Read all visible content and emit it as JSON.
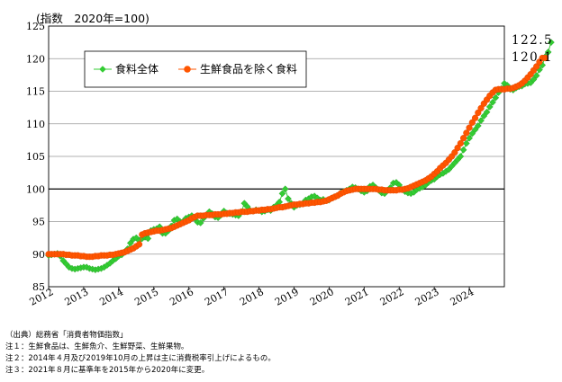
{
  "colors": {
    "food_all": "#33cc33",
    "fresh_excl": "#ff5500",
    "gridline": "#999999",
    "reference": "#000000"
  },
  "chart_data": {
    "type": "line",
    "unit_label": "(指数　2020年=100)",
    "ylim": [
      85,
      125
    ],
    "yticks": [
      85,
      90,
      95,
      100,
      105,
      110,
      115,
      120,
      125
    ],
    "xlim": [
      2012,
      2025
    ],
    "xticks": [
      "2012",
      "2013",
      "2014",
      "2015",
      "2016",
      "2017",
      "2018",
      "2019",
      "2020",
      "2021",
      "2022",
      "2023",
      "2024"
    ],
    "reference_line": 100,
    "legend_position": "top-left",
    "end_labels": [
      "122.5",
      "120.1"
    ],
    "series": [
      {
        "name": "食料全体",
        "marker": "diamond",
        "values": [
          89.8,
          89.9,
          90.0,
          90.1,
          89.7,
          89.0,
          88.5,
          88.0,
          87.8,
          87.7,
          87.8,
          87.9,
          88.0,
          88.0,
          87.8,
          87.7,
          87.6,
          87.7,
          87.8,
          88.0,
          88.3,
          88.6,
          89.0,
          89.3,
          89.7,
          89.9,
          90.3,
          90.8,
          91.7,
          92.3,
          92.5,
          92.1,
          92.4,
          92.6,
          92.4,
          93.6,
          93.8,
          93.9,
          94.2,
          93.2,
          93.2,
          93.6,
          94.3,
          95.2,
          95.4,
          95.0,
          95.0,
          95.5,
          95.7,
          95.9,
          95.5,
          94.9,
          94.8,
          95.5,
          96.0,
          96.5,
          96.2,
          95.7,
          95.6,
          96.0,
          96.6,
          96.3,
          96.2,
          96.1,
          96.0,
          95.9,
          96.5,
          97.8,
          97.3,
          96.7,
          96.6,
          96.8,
          96.7,
          96.5,
          96.6,
          96.8,
          96.7,
          97.2,
          97.5,
          98.0,
          99.3,
          100.0,
          98.5,
          97.8,
          97.2,
          97.5,
          97.6,
          97.8,
          98.3,
          98.5,
          98.8,
          98.9,
          98.6,
          98.3,
          98.4,
          98.2,
          98.3,
          98.6,
          98.8,
          99.0,
          99.4,
          99.6,
          99.8,
          100.0,
          100.3,
          100.2,
          100.0,
          99.7,
          99.5,
          99.7,
          100.4,
          100.6,
          100.2,
          99.8,
          99.4,
          99.3,
          99.8,
          100.2,
          100.9,
          101.0,
          100.6,
          99.9,
          99.6,
          99.4,
          99.3,
          99.5,
          99.9,
          100.1,
          100.3,
          100.6,
          101.0,
          101.3,
          101.5,
          101.9,
          102.2,
          102.4,
          102.7,
          103.0,
          103.5,
          104.0,
          104.5,
          105.0,
          106.0,
          107.0,
          107.8,
          108.5,
          109.1,
          109.7,
          110.5,
          111.2,
          111.8,
          112.6,
          113.3,
          114.0,
          114.8,
          115.4,
          116.2,
          115.9,
          115.3,
          115.2,
          115.5,
          115.7,
          115.8,
          116.1,
          116.2,
          116.3,
          116.8,
          117.4,
          118.3,
          119.0,
          120.3,
          121.0,
          122.5
        ]
      },
      {
        "name": "生鮮食品を除く食料",
        "marker": "circle",
        "values": [
          90.0,
          90.0,
          90.0,
          90.0,
          90.0,
          90.0,
          89.9,
          89.9,
          89.8,
          89.8,
          89.8,
          89.7,
          89.7,
          89.6,
          89.6,
          89.6,
          89.7,
          89.7,
          89.8,
          89.8,
          89.8,
          89.9,
          89.9,
          90.0,
          90.1,
          90.2,
          90.3,
          90.5,
          90.7,
          90.9,
          91.2,
          91.5,
          93.0,
          93.2,
          93.3,
          93.4,
          93.5,
          93.6,
          93.6,
          93.7,
          93.8,
          93.9,
          94.0,
          94.2,
          94.4,
          94.6,
          94.8,
          95.0,
          95.2,
          95.5,
          95.7,
          95.9,
          95.9,
          95.9,
          96.0,
          96.0,
          96.0,
          96.1,
          96.1,
          96.1,
          96.2,
          96.2,
          96.3,
          96.3,
          96.4,
          96.4,
          96.5,
          96.5,
          96.5,
          96.6,
          96.6,
          96.7,
          96.7,
          96.8,
          96.8,
          96.9,
          96.9,
          97.0,
          97.1,
          97.2,
          97.2,
          97.3,
          97.4,
          97.5,
          97.6,
          97.6,
          97.7,
          97.7,
          97.8,
          97.8,
          97.9,
          97.9,
          98.0,
          98.0,
          98.1,
          98.2,
          98.4,
          98.6,
          98.8,
          99.0,
          99.3,
          99.5,
          99.7,
          99.8,
          99.9,
          100.0,
          100.0,
          100.0,
          100.0,
          100.0,
          100.0,
          100.0,
          100.0,
          99.9,
          99.9,
          99.8,
          99.8,
          99.8,
          99.8,
          99.8,
          99.9,
          99.9,
          100.0,
          100.1,
          100.3,
          100.5,
          100.7,
          100.9,
          101.1,
          101.3,
          101.6,
          101.9,
          102.3,
          102.7,
          103.2,
          103.6,
          104.0,
          104.5,
          105.0,
          105.6,
          106.3,
          107.0,
          107.8,
          108.6,
          109.4,
          110.2,
          110.9,
          111.7,
          112.4,
          113.1,
          113.7,
          114.3,
          114.8,
          115.2,
          115.3,
          115.3,
          115.3,
          115.4,
          115.4,
          115.5,
          115.7,
          115.9,
          116.2,
          116.6,
          117.1,
          117.6,
          118.2,
          118.8,
          119.5,
          120.1,
          120.1
        ]
      }
    ]
  },
  "notes": {
    "source": "（出典）総務省「消費者物価指数」",
    "note1": "注１：生鮮食品は、生鮮魚介、生鮮野菜、生鮮果物。",
    "note2": "注２：2014年４月及び2019年10月の上昇は主に消費税率引上げによるもの。",
    "note3": "注３：2021年８月に基準年を2015年から2020年に変更。"
  }
}
